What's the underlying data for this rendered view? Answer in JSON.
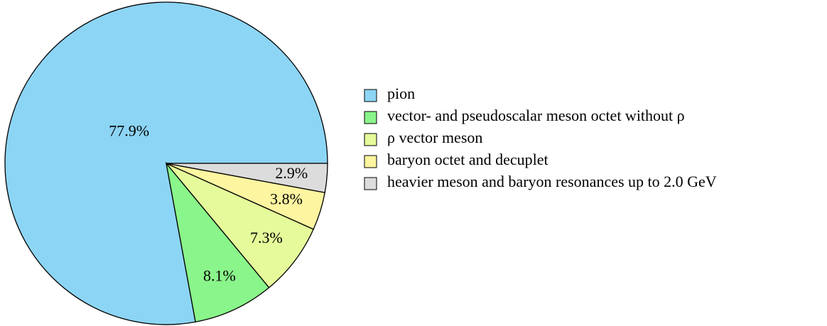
{
  "chart_data": {
    "type": "pie",
    "categories": [
      "pion",
      "vector- and pseudoscalar meson octet without ρ",
      "ρ vector meson",
      "baryon octet and decuplet",
      "heavier meson and baryon resonances up to 2.0 GeV"
    ],
    "values": [
      77.9,
      8.1,
      7.3,
      3.8,
      2.9
    ],
    "value_labels": [
      "77.9%",
      "8.1%",
      "7.3%",
      "3.8%",
      "2.9%"
    ],
    "colors": [
      "#8dd5f5",
      "#8af58a",
      "#e5fa9a",
      "#fdf5a0",
      "#dcdcdc"
    ]
  }
}
